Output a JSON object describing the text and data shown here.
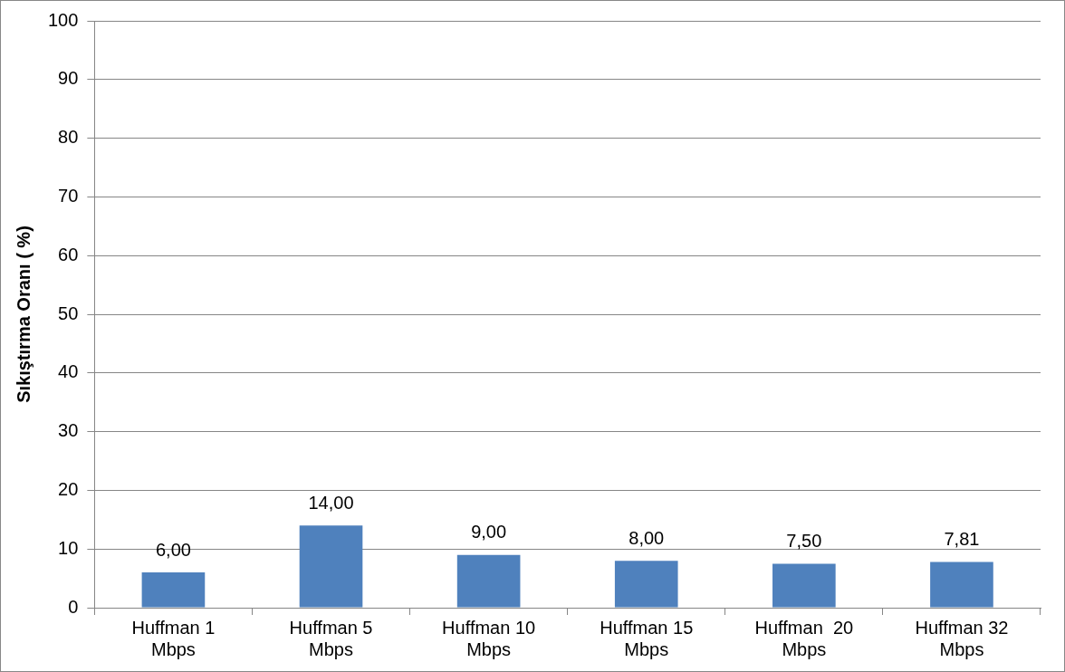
{
  "chart_data": {
    "type": "bar",
    "ylabel": "Sıkıştırma Oranı ( %)",
    "categories": [
      "Huffman 1 Mbps",
      "Huffman 5 Mbps",
      "Huffman 10 Mbps",
      "Huffman 15 Mbps",
      "Huffman  20 Mbps",
      "Huffman 32 Mbps"
    ],
    "values": [
      6,
      14,
      9,
      8,
      7.5,
      7.81
    ],
    "value_labels": [
      "6,00",
      "14,00",
      "9,00",
      "8,00",
      "7,50",
      "7,81"
    ],
    "color": "#4f81bd",
    "ylim": [
      0,
      100
    ],
    "yticks": [
      0,
      10,
      20,
      30,
      40,
      50,
      60,
      70,
      80,
      90,
      100
    ],
    "grid": "y"
  }
}
